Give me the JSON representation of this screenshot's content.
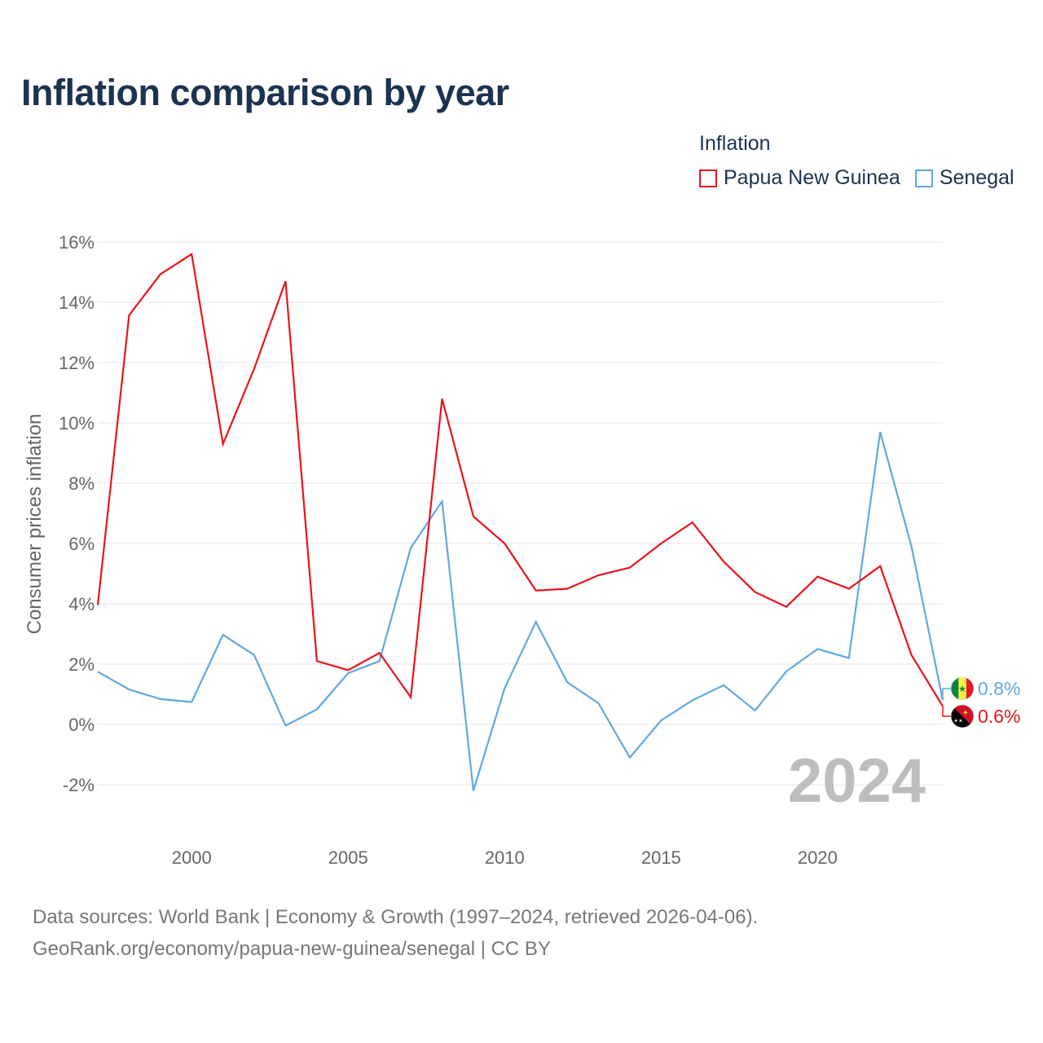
{
  "title": "Inflation comparison by year",
  "legend": {
    "title": "Inflation",
    "items": [
      {
        "label": "Papua New Guinea",
        "color": "#e8141a"
      },
      {
        "label": "Senegal",
        "color": "#5fa8e4"
      }
    ]
  },
  "chart_data": {
    "type": "line",
    "ylabel": "Consumer prices inflation",
    "ylim": [
      -3,
      16
    ],
    "xlim": [
      1997,
      2024
    ],
    "yticks": [
      -2,
      0,
      2,
      4,
      6,
      8,
      10,
      12,
      14,
      16
    ],
    "ytick_labels": [
      "-2%",
      "0%",
      "2%",
      "4%",
      "6%",
      "8%",
      "10%",
      "12%",
      "14%",
      "16%"
    ],
    "xticks": [
      2000,
      2005,
      2010,
      2015,
      2020
    ],
    "xtick_labels": [
      "2000",
      "2005",
      "2010",
      "2015",
      "2020"
    ],
    "x": [
      1997,
      1998,
      1999,
      2000,
      2001,
      2002,
      2003,
      2004,
      2005,
      2006,
      2007,
      2008,
      2009,
      2010,
      2011,
      2012,
      2013,
      2014,
      2015,
      2016,
      2017,
      2018,
      2019,
      2020,
      2021,
      2022,
      2023,
      2024
    ],
    "series": [
      {
        "name": "Papua New Guinea",
        "color": "#e8141a",
        "values": [
          3.96,
          13.57,
          14.93,
          15.6,
          9.3,
          11.8,
          14.7,
          2.1,
          1.8,
          2.37,
          0.9,
          10.8,
          6.9,
          6.0,
          4.44,
          4.5,
          4.95,
          5.2,
          6.0,
          6.7,
          5.4,
          4.39,
          3.9,
          4.9,
          4.5,
          5.25,
          2.3,
          0.6
        ],
        "end_label": "0.6%",
        "flag": "png-flag-icon"
      },
      {
        "name": "Senegal",
        "color": "#5fa8e4",
        "values": [
          1.75,
          1.16,
          0.84,
          0.74,
          2.97,
          2.3,
          -0.04,
          0.5,
          1.7,
          2.1,
          5.85,
          7.4,
          -2.2,
          1.2,
          3.4,
          1.4,
          0.7,
          -1.1,
          0.13,
          0.8,
          1.3,
          0.46,
          1.76,
          2.5,
          2.2,
          9.7,
          5.9,
          0.8
        ],
        "end_label": "0.8%",
        "flag": "senegal-flag-icon"
      }
    ],
    "watermark_year": "2024"
  },
  "source": {
    "line1": "Data sources: World Bank | Economy & Growth (1997–2024, retrieved 2026-04-06).",
    "line2": "GeoRank.org/economy/papua-new-guinea/senegal | CC BY"
  }
}
